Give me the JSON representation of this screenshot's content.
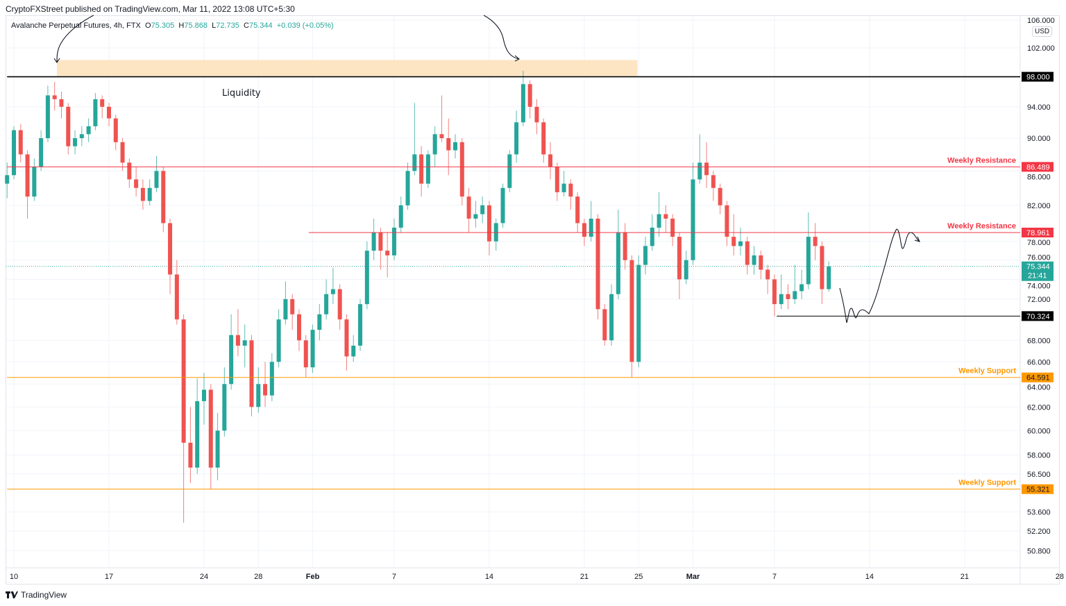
{
  "header": {
    "published": "CryptoFXStreet published on TradingView.com, Mar 11, 2022 13:08 UTC+5:30",
    "symbol": "Avalanche Perpetual Futures, 4h, FTX",
    "open_label": "O",
    "open": "75.305",
    "high_label": "H",
    "high": "75.868",
    "low_label": "L",
    "low": "72.735",
    "close_label": "C",
    "close": "75.344",
    "change": "+0.039 (+0.05%)"
  },
  "currency": "USD",
  "footer": {
    "brand": "TradingView",
    "logo_icon": "tradingview-logo-icon"
  },
  "colors": {
    "up": "#26a69a",
    "down": "#ef5350",
    "resistance": "#f23645",
    "support": "#ff9800",
    "zone": "#fde5c3",
    "level": "#000000"
  },
  "chart_data": {
    "type": "candlestick",
    "yscale": "log",
    "ylim": [
      49.8,
      106.5
    ],
    "grid": true,
    "first_candle": "2022-01-09T12:00",
    "step_hours": 12,
    "candles_ohlc": [
      [
        84.5,
        87,
        82.8,
        85.5
      ],
      [
        85.5,
        91.5,
        85,
        91
      ],
      [
        91,
        91.8,
        87,
        88
      ],
      [
        88,
        88.5,
        80.5,
        83
      ],
      [
        83,
        87.5,
        82.5,
        86.5
      ],
      [
        86.5,
        91,
        86,
        90
      ],
      [
        90,
        96.8,
        89.5,
        95.5
      ],
      [
        95.5,
        97.3,
        93.5,
        95
      ],
      [
        95,
        96,
        92.5,
        94
      ],
      [
        94,
        94.5,
        88,
        89
      ],
      [
        89,
        91,
        88,
        90
      ],
      [
        90,
        91.5,
        89,
        90.5
      ],
      [
        90.5,
        92.5,
        89.5,
        91.5
      ],
      [
        91.5,
        95.8,
        91,
        95
      ],
      [
        95,
        95.5,
        92.5,
        94
      ],
      [
        94,
        94.5,
        91.5,
        92.5
      ],
      [
        92.5,
        93,
        88.5,
        89.5
      ],
      [
        89.5,
        90,
        86,
        87
      ],
      [
        87,
        87.5,
        84,
        85
      ],
      [
        85,
        86.5,
        83,
        84
      ],
      [
        84,
        85,
        81.5,
        82.5
      ],
      [
        82.5,
        85,
        82,
        84
      ],
      [
        84,
        87.8,
        83.5,
        86
      ],
      [
        86,
        86.5,
        79,
        80
      ],
      [
        80,
        80.5,
        72.5,
        74.5
      ],
      [
        74.5,
        76,
        69.5,
        70
      ],
      [
        70,
        70.5,
        52.8,
        59
      ],
      [
        59,
        62,
        55.8,
        57
      ],
      [
        57,
        64.5,
        56.5,
        62.5
      ],
      [
        62.5,
        65,
        60.5,
        63.5
      ],
      [
        63.5,
        64,
        55.3,
        57
      ],
      [
        57,
        61.5,
        56,
        60
      ],
      [
        60,
        65.5,
        59.5,
        64
      ],
      [
        64,
        70.5,
        63.5,
        68.5
      ],
      [
        68.5,
        71,
        66.5,
        67.5
      ],
      [
        67.5,
        69.5,
        65.5,
        68
      ],
      [
        68,
        68.5,
        61.2,
        62
      ],
      [
        62,
        65.5,
        61.5,
        64
      ],
      [
        64,
        66,
        62,
        63
      ],
      [
        63,
        66.8,
        62.5,
        66
      ],
      [
        66,
        71,
        65.5,
        70
      ],
      [
        70,
        73.8,
        69.5,
        72
      ],
      [
        72,
        72.5,
        69,
        70.5
      ],
      [
        70.5,
        71,
        67,
        68
      ],
      [
        68,
        68.5,
        64.6,
        65.5
      ],
      [
        65.5,
        69.5,
        65,
        69
      ],
      [
        69,
        71.5,
        68,
        70.5
      ],
      [
        70.5,
        74,
        70,
        72.5
      ],
      [
        72.5,
        75.2,
        71.5,
        73
      ],
      [
        73,
        73.5,
        69,
        70
      ],
      [
        70,
        70.5,
        65.2,
        66.5
      ],
      [
        66.5,
        68.5,
        66,
        67.5
      ],
      [
        67.5,
        72,
        67,
        71.5
      ],
      [
        71.5,
        78,
        71,
        77
      ],
      [
        77,
        80.5,
        76,
        79
      ],
      [
        79,
        79.5,
        75,
        77
      ],
      [
        77,
        79,
        74.2,
        76.5
      ],
      [
        76.5,
        80.5,
        76,
        79.5
      ],
      [
        79.5,
        83,
        79,
        82
      ],
      [
        82,
        87,
        81.5,
        86
      ],
      [
        86,
        94.5,
        85.5,
        88
      ],
      [
        88,
        89,
        83,
        84.5
      ],
      [
        84.5,
        88.5,
        84,
        88
      ],
      [
        88,
        91.5,
        86.5,
        90.5
      ],
      [
        90.5,
        95.5,
        89.5,
        90
      ],
      [
        90,
        92.5,
        85.5,
        88.5
      ],
      [
        88.5,
        90.5,
        87.5,
        89.5
      ],
      [
        89.5,
        90,
        82,
        83
      ],
      [
        83,
        84,
        79,
        80.5
      ],
      [
        80.5,
        82.5,
        79.5,
        81
      ],
      [
        81,
        83,
        80,
        82
      ],
      [
        82,
        82.5,
        76.5,
        78
      ],
      [
        78,
        80.5,
        77,
        80
      ],
      [
        80,
        84.5,
        79.5,
        84
      ],
      [
        84,
        88.5,
        83.5,
        88
      ],
      [
        88,
        93.5,
        87,
        92
      ],
      [
        92,
        98.8,
        91.5,
        97
      ],
      [
        97,
        97.5,
        92.5,
        94
      ],
      [
        94,
        95,
        90.5,
        92
      ],
      [
        92,
        92.5,
        87,
        88
      ],
      [
        88,
        89.5,
        85,
        86.5
      ],
      [
        86.5,
        87,
        82.5,
        83.5
      ],
      [
        83.5,
        86,
        83,
        84.5
      ],
      [
        84.5,
        85,
        81.5,
        83
      ],
      [
        83,
        83.5,
        79,
        80
      ],
      [
        80,
        80.5,
        77.5,
        78.5
      ],
      [
        78.5,
        82.5,
        78,
        80.5
      ],
      [
        80.5,
        81,
        70,
        71
      ],
      [
        71,
        71.5,
        67.5,
        68
      ],
      [
        68,
        73.5,
        67.5,
        72.5
      ],
      [
        72.5,
        81.5,
        72,
        79
      ],
      [
        79,
        80,
        75,
        76
      ],
      [
        76,
        76.5,
        64.6,
        66
      ],
      [
        66,
        76.5,
        65.5,
        75.5
      ],
      [
        75.5,
        78.5,
        74.5,
        77.5
      ],
      [
        77.5,
        81,
        77,
        79.5
      ],
      [
        79.5,
        83.5,
        78.5,
        81
      ],
      [
        81,
        82,
        79,
        80.5
      ],
      [
        80.5,
        81,
        77.5,
        78.5
      ],
      [
        78.5,
        79,
        72,
        74
      ],
      [
        74,
        77,
        73.5,
        76
      ],
      [
        76,
        87,
        75.5,
        85
      ],
      [
        85,
        90.5,
        84.5,
        87
      ],
      [
        87,
        89.5,
        84,
        85.5
      ],
      [
        85.5,
        86,
        82.5,
        84
      ],
      [
        84,
        84.5,
        81,
        82
      ],
      [
        82,
        82.5,
        77.5,
        78.5
      ],
      [
        78.5,
        81,
        76.5,
        77.5
      ],
      [
        77.5,
        79.5,
        76.5,
        78
      ],
      [
        78,
        78.5,
        74.5,
        75.5
      ],
      [
        75.5,
        77.5,
        74.5,
        76.5
      ],
      [
        76.5,
        77,
        74,
        75
      ],
      [
        75,
        75.5,
        72.5,
        74
      ],
      [
        74,
        74.5,
        70.3,
        71.5
      ],
      [
        71.5,
        74.5,
        71,
        72.5
      ],
      [
        72.5,
        73.5,
        71,
        72
      ],
      [
        72,
        75.5,
        71.5,
        72.8
      ],
      [
        72.8,
        75,
        72,
        73.5
      ],
      [
        73.5,
        81.2,
        73,
        78.5
      ],
      [
        78.5,
        80,
        76,
        77.5
      ],
      [
        77.5,
        78,
        71.5,
        73
      ],
      [
        73,
        75.868,
        72.735,
        75.344
      ]
    ],
    "y_ticks": [
      "106.000",
      "102.000",
      "94.000",
      "90.000",
      "86.000",
      "82.000",
      "78.000",
      "76.000",
      "74.000",
      "72.000",
      "68.000",
      "66.000",
      "64.000",
      "62.000",
      "60.000",
      "58.000",
      "56.500",
      "53.600",
      "52.200",
      "50.800"
    ],
    "x_ticks": [
      {
        "label": "10",
        "date": "2022-01-10"
      },
      {
        "label": "17",
        "date": "2022-01-17"
      },
      {
        "label": "24",
        "date": "2022-01-24"
      },
      {
        "label": "28",
        "date": "2022-01-28"
      },
      {
        "label": "Feb",
        "date": "2022-02-01"
      },
      {
        "label": "7",
        "date": "2022-02-07"
      },
      {
        "label": "14",
        "date": "2022-02-14"
      },
      {
        "label": "21",
        "date": "2022-02-21"
      },
      {
        "label": "25",
        "date": "2022-02-25"
      },
      {
        "label": "Mar",
        "date": "2022-03-01"
      },
      {
        "label": "7",
        "date": "2022-03-07"
      },
      {
        "label": "14",
        "date": "2022-03-14"
      },
      {
        "label": "21",
        "date": "2022-03-21"
      },
      {
        "label": "28",
        "date": "2022-03-28"
      }
    ],
    "levels": [
      {
        "price": 98.0,
        "label_value": "98.000",
        "text": "",
        "color": "#000000",
        "from": "2022-01-09T12:00",
        "width": 1.6,
        "kind": "level"
      },
      {
        "price": 86.489,
        "label_value": "86.489",
        "text": "Weekly Resistance",
        "color": "#f23645",
        "from": "2022-01-09T12:00",
        "kind": "resistance"
      },
      {
        "price": 78.961,
        "label_value": "78.961",
        "text": "Weekly Resistance",
        "color": "#f23645",
        "from": "2022-01-31T17:00",
        "kind": "resistance"
      },
      {
        "price": 70.324,
        "label_value": "70.324",
        "text": "",
        "color": "#000000",
        "from": "2022-03-07T04:00",
        "kind": "level"
      },
      {
        "price": 64.591,
        "label_value": "64.591",
        "text": "Weekly Support",
        "color": "#ff9800",
        "from": "2022-01-09T12:00",
        "kind": "support"
      },
      {
        "price": 55.321,
        "label_value": "55.321",
        "text": "Weekly Support",
        "color": "#ff9800",
        "from": "2022-01-09T12:00",
        "kind": "support"
      }
    ],
    "last_price": {
      "value": 75.344,
      "label": "75.344",
      "countdown": "21:41"
    },
    "zone": {
      "text": "Liquidity",
      "from": "2022-01-13T04:00",
      "to": "2022-02-24T22:00",
      "low": 98.1,
      "high": 100.3
    }
  }
}
